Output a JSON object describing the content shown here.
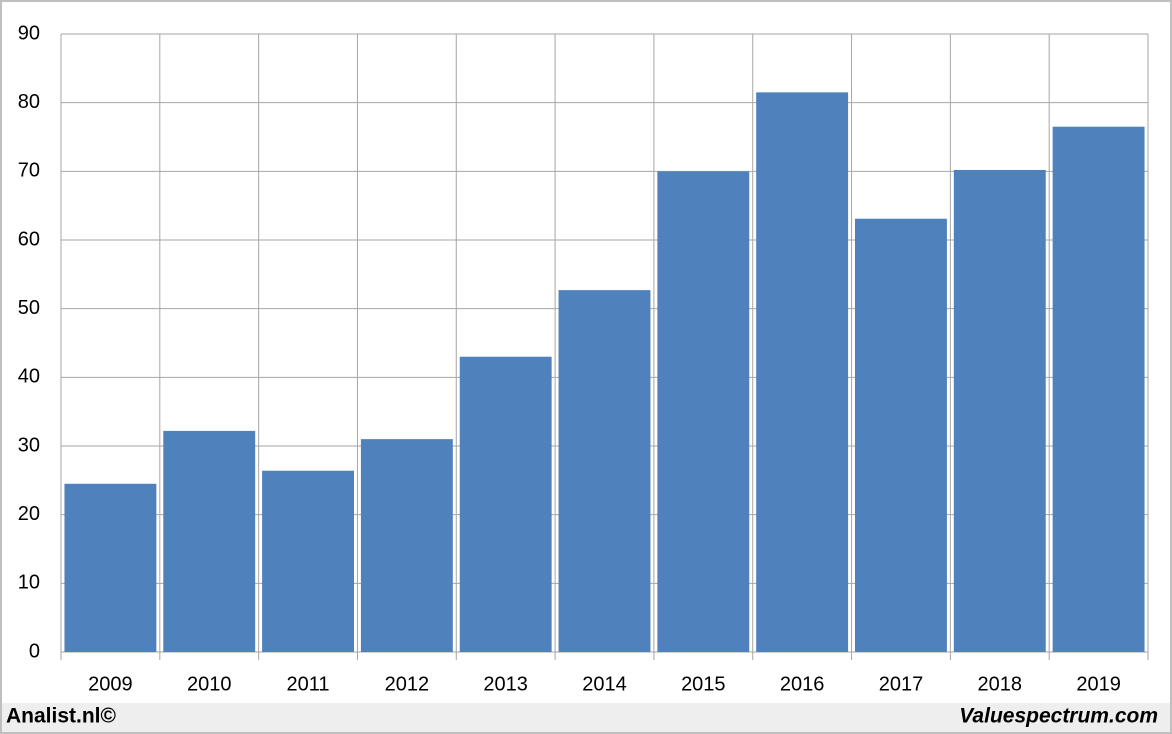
{
  "chart_data": {
    "type": "bar",
    "categories": [
      "2009",
      "2010",
      "2011",
      "2012",
      "2013",
      "2014",
      "2015",
      "2016",
      "2017",
      "2018",
      "2019"
    ],
    "values": [
      24.5,
      32.2,
      26.4,
      31.0,
      43.0,
      52.7,
      70.0,
      81.5,
      63.1,
      70.2,
      76.5
    ],
    "color": "#4f81bd",
    "ylim": [
      0,
      90
    ],
    "yticks": [
      0,
      10,
      20,
      30,
      40,
      50,
      60,
      70,
      80,
      90
    ],
    "grid": true,
    "footer_left": "Analist.nl©",
    "footer_right": "Valuespectrum.com"
  }
}
